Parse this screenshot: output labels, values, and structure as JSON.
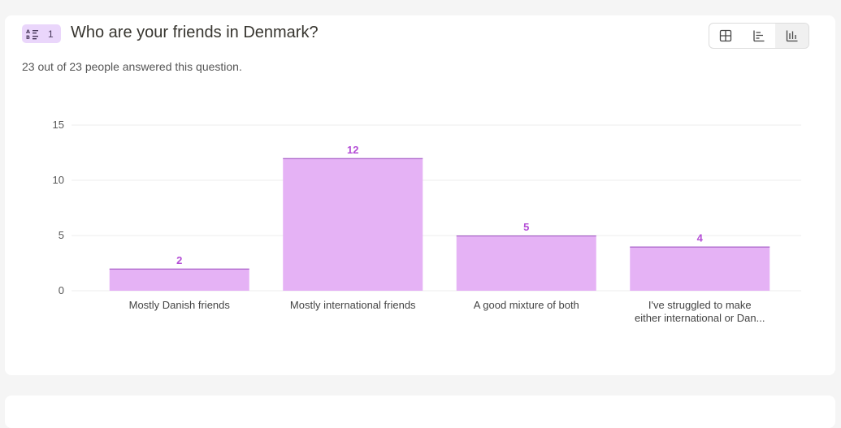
{
  "question": {
    "number": "1",
    "type_icon": "multiple-choice-icon",
    "title": "Who are your friends in Denmark?",
    "summary": "23 out of 23 people answered this question."
  },
  "view_toggle": {
    "options": [
      {
        "icon": "table-view-icon"
      },
      {
        "icon": "horizontal-bar-view-icon"
      },
      {
        "icon": "vertical-bar-view-icon",
        "selected": true
      }
    ]
  },
  "colors": {
    "bar_fill": "#e5b2f5",
    "bar_top": "#9b4fbf",
    "value_label": "#b44dd6",
    "grid": "#ececec",
    "badge_bg": "#ead6fb"
  },
  "chart_data": {
    "type": "bar",
    "categories": [
      "Mostly Danish friends",
      "Mostly international friends",
      "A good mixture of both",
      "I've struggled to make either international or Dan..."
    ],
    "category_lines": [
      [
        "Mostly Danish friends"
      ],
      [
        "Mostly international friends"
      ],
      [
        "A good mixture of both"
      ],
      [
        "I've struggled to make",
        "either international or Dan..."
      ]
    ],
    "values": [
      2,
      12,
      5,
      4
    ],
    "ylim": [
      0,
      15
    ],
    "yticks": [
      0,
      5,
      10,
      15
    ],
    "grid": true,
    "data_labels": true,
    "xlabel": "",
    "ylabel": ""
  }
}
